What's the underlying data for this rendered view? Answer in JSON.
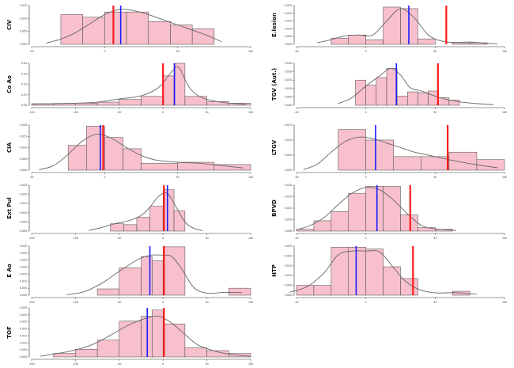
{
  "colors": {
    "bar_fill": "#f7c0cc",
    "bar_stroke": "#444444",
    "density": "#666666",
    "median_line": "#1a1aff",
    "reference_line": "#ff1a1a",
    "axis": "#333333"
  },
  "chart_data": [
    {
      "type": "bar",
      "ylabel": "CIV",
      "xlim": [
        -50,
        100
      ],
      "ylim": [
        0,
        0.015
      ],
      "x_ticks": [
        "-50",
        "0",
        "50",
        "100"
      ],
      "y_ticks": [
        "0.000",
        "0.005",
        "0.010",
        "0.015"
      ],
      "bins": [
        [
          -30,
          -15,
          0.0115
        ],
        [
          -15,
          0,
          0.0105
        ],
        [
          0,
          15,
          0.0125
        ],
        [
          15,
          30,
          0.0125
        ],
        [
          30,
          45,
          0.0088
        ],
        [
          45,
          60,
          0.0075
        ],
        [
          60,
          75,
          0.006
        ]
      ],
      "density": [
        [
          -40,
          0.0005
        ],
        [
          -30,
          0.002
        ],
        [
          -20,
          0.0045
        ],
        [
          -10,
          0.008
        ],
        [
          0,
          0.0115
        ],
        [
          10,
          0.0135
        ],
        [
          20,
          0.013
        ],
        [
          30,
          0.0115
        ],
        [
          40,
          0.0095
        ],
        [
          50,
          0.0075
        ],
        [
          60,
          0.0055
        ],
        [
          70,
          0.0035
        ],
        [
          80,
          0.001
        ]
      ],
      "median": 11,
      "reference": 6
    },
    {
      "type": "bar",
      "ylabel": "E.lesion",
      "xlim": [
        -50,
        100
      ],
      "ylim": [
        0,
        0.025
      ],
      "x_ticks": [
        "-50",
        "0",
        "50",
        "100"
      ],
      "y_ticks": [
        "0.000",
        "0.005",
        "0.010",
        "0.015",
        "0.020",
        "0.025"
      ],
      "bins": [
        [
          -25,
          -12.5,
          0.004
        ],
        [
          -12.5,
          0,
          0.006
        ],
        [
          0,
          12.5,
          0.003
        ],
        [
          12.5,
          25,
          0.024
        ],
        [
          25,
          37.5,
          0.023
        ],
        [
          37.5,
          50,
          0.0035
        ],
        [
          62.5,
          75,
          0.001
        ],
        [
          75,
          87.5,
          0.001
        ]
      ],
      "density": [
        [
          -35,
          0.001
        ],
        [
          -25,
          0.003
        ],
        [
          -15,
          0.0055
        ],
        [
          -5,
          0.006
        ],
        [
          5,
          0.006
        ],
        [
          15,
          0.015
        ],
        [
          25,
          0.023
        ],
        [
          35,
          0.017
        ],
        [
          45,
          0.006
        ],
        [
          55,
          0.002
        ],
        [
          65,
          0.0012
        ],
        [
          75,
          0.0015
        ],
        [
          85,
          0.0008
        ],
        [
          95,
          0.0003
        ]
      ],
      "median": 31,
      "reference": 58
    },
    {
      "type": "bar",
      "ylabel": "Co Ao",
      "xlim": [
        -150,
        100
      ],
      "ylim": [
        0,
        0.04
      ],
      "x_ticks": [
        "-150",
        "-100",
        "-50",
        "0",
        "50",
        "100"
      ],
      "y_ticks": [
        "0.00",
        "0.01",
        "0.02",
        "0.03",
        "0.04"
      ],
      "bins": [
        [
          -150,
          -125,
          0.0015
        ],
        [
          -125,
          -100,
          0.0018
        ],
        [
          -100,
          -75,
          0.002
        ],
        [
          -75,
          -50,
          0.003
        ],
        [
          -50,
          -25,
          0.0055
        ],
        [
          -25,
          0,
          0.0085
        ],
        [
          0,
          12.5,
          0.028
        ],
        [
          12.5,
          25,
          0.04
        ],
        [
          25,
          50,
          0.0085
        ],
        [
          50,
          75,
          0.0035
        ],
        [
          75,
          100,
          0.002
        ]
      ],
      "density": [
        [
          -150,
          0.0012
        ],
        [
          -125,
          0.0015
        ],
        [
          -100,
          0.002
        ],
        [
          -75,
          0.003
        ],
        [
          -50,
          0.006
        ],
        [
          -25,
          0.009
        ],
        [
          -5,
          0.017
        ],
        [
          10,
          0.032
        ],
        [
          18,
          0.036
        ],
        [
          30,
          0.017
        ],
        [
          45,
          0.007
        ],
        [
          70,
          0.0025
        ],
        [
          95,
          0.001
        ]
      ],
      "median": 13,
      "reference": 0
    },
    {
      "type": "bar",
      "ylabel": "TGV (Aut.)",
      "xlim": [
        -50,
        100
      ],
      "ylim": [
        0,
        0.025
      ],
      "x_ticks": [
        "-50",
        "0",
        "50",
        "100"
      ],
      "y_ticks": [
        "0.000",
        "0.005",
        "0.010",
        "0.015",
        "0.020",
        "0.025"
      ],
      "bins": [
        [
          -7.5,
          0,
          0.015
        ],
        [
          0,
          7.5,
          0.012
        ],
        [
          7.5,
          15,
          0.0165
        ],
        [
          15,
          22.5,
          0.022
        ],
        [
          22.5,
          30,
          0.0055
        ],
        [
          30,
          37.5,
          0.008
        ],
        [
          37.5,
          45,
          0.0075
        ],
        [
          45,
          52.5,
          0.0085
        ],
        [
          52.5,
          60,
          0.0045
        ],
        [
          60,
          67.5,
          0.003
        ]
      ],
      "density": [
        [
          -20,
          0.001
        ],
        [
          -10,
          0.0045
        ],
        [
          0,
          0.0115
        ],
        [
          10,
          0.0175
        ],
        [
          18,
          0.022
        ],
        [
          25,
          0.018
        ],
        [
          32,
          0.0105
        ],
        [
          40,
          0.0085
        ],
        [
          48,
          0.006
        ],
        [
          58,
          0.0035
        ],
        [
          68,
          0.002
        ],
        [
          80,
          0.001
        ],
        [
          92,
          0.0003
        ]
      ],
      "median": 22,
      "reference": 52
    },
    {
      "type": "bar",
      "ylabel": "CIA",
      "xlim": [
        -50,
        100
      ],
      "ylim": [
        0,
        0.02
      ],
      "x_ticks": [
        "-50",
        "0",
        "50",
        "100"
      ],
      "y_ticks": [
        "0.000",
        "0.005",
        "0.010",
        "0.015",
        "0.020"
      ],
      "bins": [
        [
          -25,
          -12.5,
          0.011
        ],
        [
          -12.5,
          0,
          0.0195
        ],
        [
          0,
          12.5,
          0.0145
        ],
        [
          12.5,
          25,
          0.0095
        ],
        [
          25,
          50,
          0.003
        ],
        [
          50,
          75,
          0.0035
        ],
        [
          75,
          100,
          0.0025
        ]
      ],
      "density": [
        [
          -45,
          0.0002
        ],
        [
          -35,
          0.002
        ],
        [
          -25,
          0.007
        ],
        [
          -15,
          0.013
        ],
        [
          -5,
          0.016
        ],
        [
          5,
          0.014
        ],
        [
          15,
          0.01
        ],
        [
          25,
          0.0065
        ],
        [
          35,
          0.0045
        ],
        [
          50,
          0.0035
        ],
        [
          65,
          0.003
        ],
        [
          80,
          0.002
        ],
        [
          95,
          0.001
        ]
      ],
      "median": -3,
      "reference": -1
    },
    {
      "type": "bar",
      "ylabel": "LTGV",
      "xlim": [
        -50,
        100
      ],
      "ylim": [
        0,
        0.015
      ],
      "x_ticks": [
        "-50",
        "0",
        "50",
        "100"
      ],
      "y_ticks": [
        "0.000",
        "0.005",
        "0.010",
        "0.015"
      ],
      "bins": [
        [
          -20,
          0,
          0.0135
        ],
        [
          0,
          20,
          0.01
        ],
        [
          20,
          40,
          0.0045
        ],
        [
          40,
          60,
          0.0045
        ],
        [
          60,
          80,
          0.006
        ],
        [
          80,
          100,
          0.0035
        ]
      ],
      "density": [
        [
          -45,
          0.0002
        ],
        [
          -35,
          0.002
        ],
        [
          -25,
          0.006
        ],
        [
          -15,
          0.0095
        ],
        [
          -5,
          0.011
        ],
        [
          5,
          0.0105
        ],
        [
          15,
          0.009
        ],
        [
          25,
          0.0075
        ],
        [
          35,
          0.006
        ],
        [
          45,
          0.005
        ],
        [
          55,
          0.004
        ],
        [
          65,
          0.003
        ],
        [
          80,
          0.0018
        ],
        [
          95,
          0.0008
        ]
      ],
      "median": 7,
      "reference": 59
    },
    {
      "type": "bar",
      "ylabel": "Ext Pul",
      "xlim": [
        -150,
        100
      ],
      "ylim": [
        0,
        0.025
      ],
      "x_ticks": [
        "-150",
        "-100",
        "-50",
        "0",
        "50",
        "100"
      ],
      "y_ticks": [
        "0.000",
        "0.005",
        "0.010",
        "0.015",
        "0.020",
        "0.025"
      ],
      "bins": [
        [
          -60,
          -45,
          0.004
        ],
        [
          -45,
          -30,
          0.0035
        ],
        [
          -30,
          -15,
          0.0075
        ],
        [
          -15,
          0,
          0.0135
        ],
        [
          0,
          12.5,
          0.0225
        ],
        [
          12.5,
          25,
          0.011
        ]
      ],
      "density": [
        [
          -85,
          0.0003
        ],
        [
          -70,
          0.002
        ],
        [
          -55,
          0.004
        ],
        [
          -40,
          0.0055
        ],
        [
          -25,
          0.0085
        ],
        [
          -15,
          0.013
        ],
        [
          -5,
          0.019
        ],
        [
          5,
          0.0205
        ],
        [
          15,
          0.013
        ],
        [
          25,
          0.005
        ],
        [
          35,
          0.0015
        ],
        [
          45,
          0.0002
        ]
      ],
      "median": 5,
      "reference": 1
    },
    {
      "type": "bar",
      "ylabel": "BPVD",
      "xlim": [
        -50,
        100
      ],
      "ylim": [
        0,
        0.02
      ],
      "x_ticks": [
        "-50",
        "0",
        "50",
        "100"
      ],
      "y_ticks": [
        "0.000",
        "0.005",
        "0.010",
        "0.015",
        "0.020"
      ],
      "bins": [
        [
          -50,
          -37.5,
          0.0008
        ],
        [
          -37.5,
          -25,
          0.0045
        ],
        [
          -25,
          -12.5,
          0.0085
        ],
        [
          -12.5,
          0,
          0.0165
        ],
        [
          0,
          12.5,
          0.0195
        ],
        [
          12.5,
          25,
          0.0195
        ],
        [
          25,
          37.5,
          0.007
        ],
        [
          37.5,
          50,
          0.0015
        ],
        [
          50,
          62.5,
          0.0008
        ]
      ],
      "density": [
        [
          -50,
          0.0005
        ],
        [
          -40,
          0.0025
        ],
        [
          -30,
          0.006
        ],
        [
          -20,
          0.0115
        ],
        [
          -10,
          0.0165
        ],
        [
          0,
          0.019
        ],
        [
          10,
          0.018
        ],
        [
          20,
          0.0135
        ],
        [
          30,
          0.0075
        ],
        [
          40,
          0.0025
        ],
        [
          50,
          0.001
        ],
        [
          65,
          0.0003
        ]
      ],
      "median": 8,
      "reference": 32
    },
    {
      "type": "bar",
      "ylabel": "E Ao",
      "xlim": [
        -150,
        100
      ],
      "ylim": [
        0,
        0.035
      ],
      "x_ticks": [
        "-150",
        "-100",
        "-50",
        "0",
        "50",
        "100"
      ],
      "y_ticks": [
        "0.000",
        "0.005",
        "0.010",
        "0.015",
        "0.020",
        "0.025",
        "0.030",
        "0.035"
      ],
      "bins": [
        [
          -75,
          -50,
          0.0045
        ],
        [
          -50,
          -25,
          0.0195
        ],
        [
          -25,
          -12.5,
          0.0275
        ],
        [
          -12.5,
          0,
          0.0245
        ],
        [
          0,
          25,
          0.0345
        ],
        [
          75,
          100,
          0.005
        ]
      ],
      "density": [
        [
          -110,
          0.0003
        ],
        [
          -90,
          0.0025
        ],
        [
          -70,
          0.0085
        ],
        [
          -50,
          0.017
        ],
        [
          -30,
          0.025
        ],
        [
          -15,
          0.0285
        ],
        [
          0,
          0.0285
        ],
        [
          10,
          0.0275
        ],
        [
          22,
          0.018
        ],
        [
          35,
          0.0055
        ],
        [
          50,
          0.0015
        ],
        [
          70,
          0.002
        ],
        [
          90,
          0.0018
        ]
      ],
      "median": -15,
      "reference": 1
    },
    {
      "type": "bar",
      "ylabel": "HTP",
      "xlim": [
        -50,
        100
      ],
      "ylim": [
        0,
        0.025
      ],
      "x_ticks": [
        "-50",
        "0",
        "50",
        "100"
      ],
      "y_ticks": [
        "0.000",
        "0.005",
        "0.010",
        "0.015",
        "0.020",
        "0.025"
      ],
      "bins": [
        [
          -50,
          -37.5,
          0.005
        ],
        [
          -37.5,
          -25,
          0.005
        ],
        [
          -25,
          -12.5,
          0.0245
        ],
        [
          -12.5,
          0,
          0.0245
        ],
        [
          0,
          12.5,
          0.0235
        ],
        [
          12.5,
          25,
          0.0145
        ],
        [
          25,
          37.5,
          0.0085
        ],
        [
          62.5,
          75,
          0.002
        ]
      ],
      "density": [
        [
          -55,
          0.0015
        ],
        [
          -42,
          0.0045
        ],
        [
          -30,
          0.0115
        ],
        [
          -20,
          0.0205
        ],
        [
          -10,
          0.0225
        ],
        [
          0,
          0.0225
        ],
        [
          10,
          0.022
        ],
        [
          20,
          0.014
        ],
        [
          28,
          0.0075
        ],
        [
          38,
          0.003
        ],
        [
          50,
          0.0012
        ],
        [
          65,
          0.0013
        ],
        [
          80,
          0.0005
        ]
      ],
      "median": -7,
      "reference": 34
    },
    {
      "type": "bar",
      "ylabel": "TOF",
      "xlim": [
        -150,
        100
      ],
      "ylim": [
        0,
        0.035
      ],
      "x_ticks": [
        "-150",
        "-100",
        "-50",
        "0",
        "50",
        "100"
      ],
      "y_ticks": [
        "0.000",
        "0.005",
        "0.010",
        "0.015",
        "0.020",
        "0.025",
        "0.030",
        "0.035"
      ],
      "bins": [
        [
          -125,
          -100,
          0.0025
        ],
        [
          -100,
          -75,
          0.0055
        ],
        [
          -75,
          -50,
          0.012
        ],
        [
          -50,
          -25,
          0.0255
        ],
        [
          -25,
          -12.5,
          0.029
        ],
        [
          -12.5,
          0,
          0.0335
        ],
        [
          0,
          25,
          0.0235
        ],
        [
          25,
          50,
          0.0065
        ],
        [
          50,
          75,
          0.0045
        ],
        [
          75,
          100,
          0.0025
        ]
      ],
      "density": [
        [
          -140,
          0.0005
        ],
        [
          -120,
          0.0025
        ],
        [
          -100,
          0.005
        ],
        [
          -80,
          0.009
        ],
        [
          -60,
          0.0155
        ],
        [
          -40,
          0.0225
        ],
        [
          -20,
          0.0275
        ],
        [
          -5,
          0.029
        ],
        [
          10,
          0.024
        ],
        [
          25,
          0.016
        ],
        [
          40,
          0.0085
        ],
        [
          60,
          0.004
        ],
        [
          80,
          0.0015
        ],
        [
          100,
          0.0005
        ]
      ],
      "median": -18,
      "reference": 1
    }
  ]
}
